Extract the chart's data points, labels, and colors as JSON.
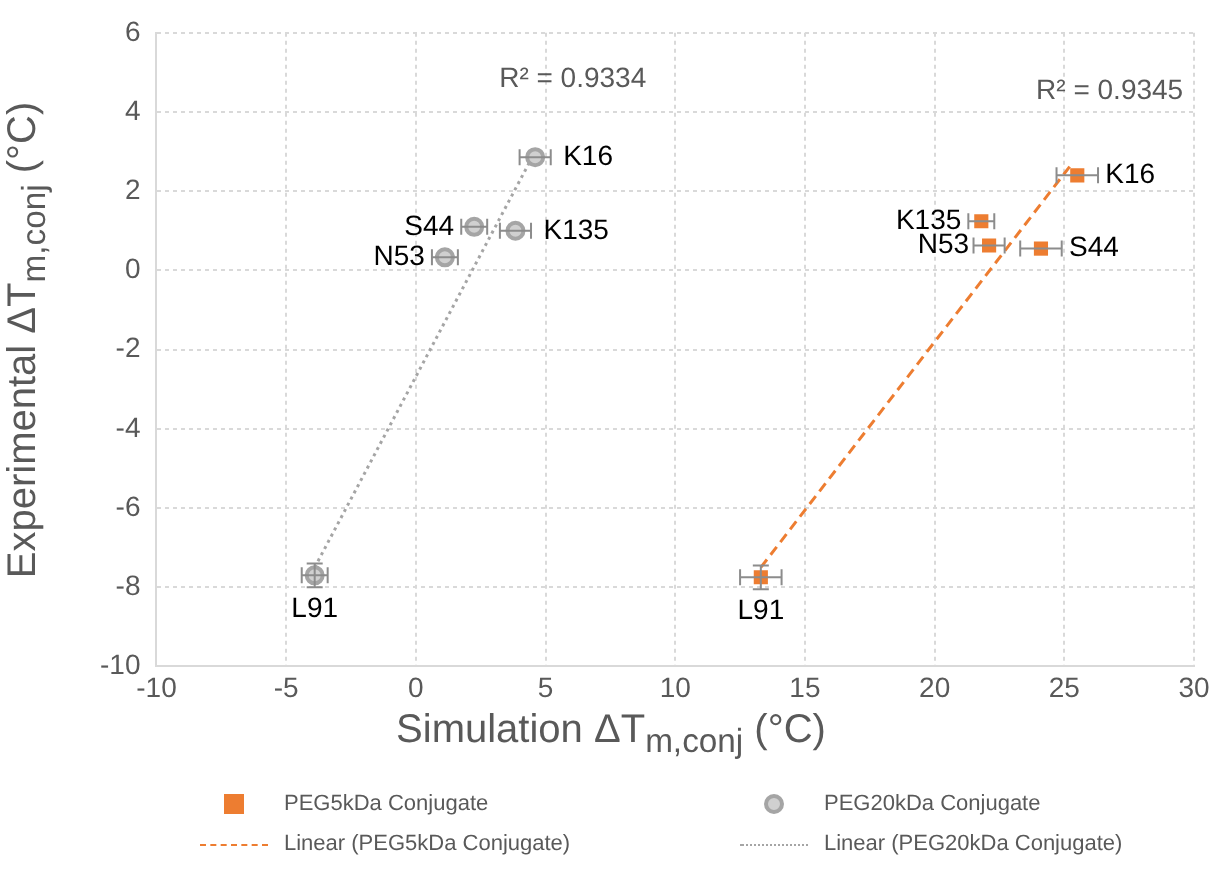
{
  "chart_data": {
    "type": "scatter",
    "xlabel": "Simulation ΔT$_{m,conj}$ (°C)",
    "ylabel": "Experimental ΔT$_{m,conj}$ (°C)",
    "xlim": [
      -10,
      30
    ],
    "xticks": [
      -10,
      -5,
      0,
      5,
      10,
      15,
      20,
      25,
      30
    ],
    "ylim": [
      -10,
      6
    ],
    "yticks": [
      -10,
      -8,
      -6,
      -4,
      -2,
      0,
      2,
      4,
      6
    ],
    "grid": true,
    "legend": "bottom",
    "series": [
      {
        "name": "PEG5kDa Conjugate",
        "marker": "square",
        "color": "#ed7d31",
        "x": [
          25.5,
          21.8,
          22.1,
          24.1,
          13.3
        ],
        "values": [
          2.4,
          1.24,
          0.63,
          0.55,
          -7.75
        ],
        "xerrors": [
          0.8,
          0.5,
          0.6,
          0.8,
          0.8
        ],
        "errors": [
          null,
          null,
          null,
          null,
          0.3
        ]
      },
      {
        "name": "PEG20kDa Conjugate",
        "marker": "circle",
        "color": "#a5a5a5",
        "x": [
          4.6,
          2.25,
          3.84,
          1.12,
          -3.9
        ],
        "values": [
          2.86,
          1.1,
          1.0,
          0.33,
          -7.7
        ],
        "xerrors": [
          0.6,
          0.5,
          0.6,
          0.5,
          0.5
        ],
        "errors": [
          null,
          null,
          null,
          null,
          0.3
        ]
      },
      {
        "name": "Linear (PEG5kDa Conjugate)",
        "type": "line",
        "marker": "none",
        "line_style": "dashed",
        "color": "#ed7d31",
        "x": [
          13.3,
          25.3
        ],
        "values": [
          -7.5,
          2.7
        ]
      },
      {
        "name": "Linear (PEG20kDa Conjugate)",
        "type": "line",
        "marker": "none",
        "line_style": "dotted",
        "color": "#a5a5a5",
        "x": [
          -3.9,
          4.6
        ],
        "values": [
          -7.5,
          3.0
        ]
      }
    ],
    "annotations": [
      {
        "text": "R² = 0.9334",
        "x": 4.6,
        "y": 3.0
      },
      {
        "text": "R² = 0.9345",
        "x": 25.3,
        "y": 2.7
      },
      {
        "text": "K16",
        "x": 4.6,
        "y": 2.86
      },
      {
        "text": "S44",
        "x": 2.25,
        "y": 1.1
      },
      {
        "text": "K135",
        "x": 3.84,
        "y": 1.0
      },
      {
        "text": "N53",
        "x": 1.12,
        "y": 0.33
      },
      {
        "text": "L91",
        "x": -3.9,
        "y": -7.7
      },
      {
        "text": "K16",
        "x": 25.5,
        "y": 2.4
      },
      {
        "text": "K135",
        "x": 21.8,
        "y": 1.24
      },
      {
        "text": "N53",
        "x": 22.1,
        "y": 0.63
      },
      {
        "text": "S44",
        "x": 24.1,
        "y": 0.55
      },
      {
        "text": "L91",
        "x": 13.3,
        "y": -7.75
      }
    ]
  }
}
